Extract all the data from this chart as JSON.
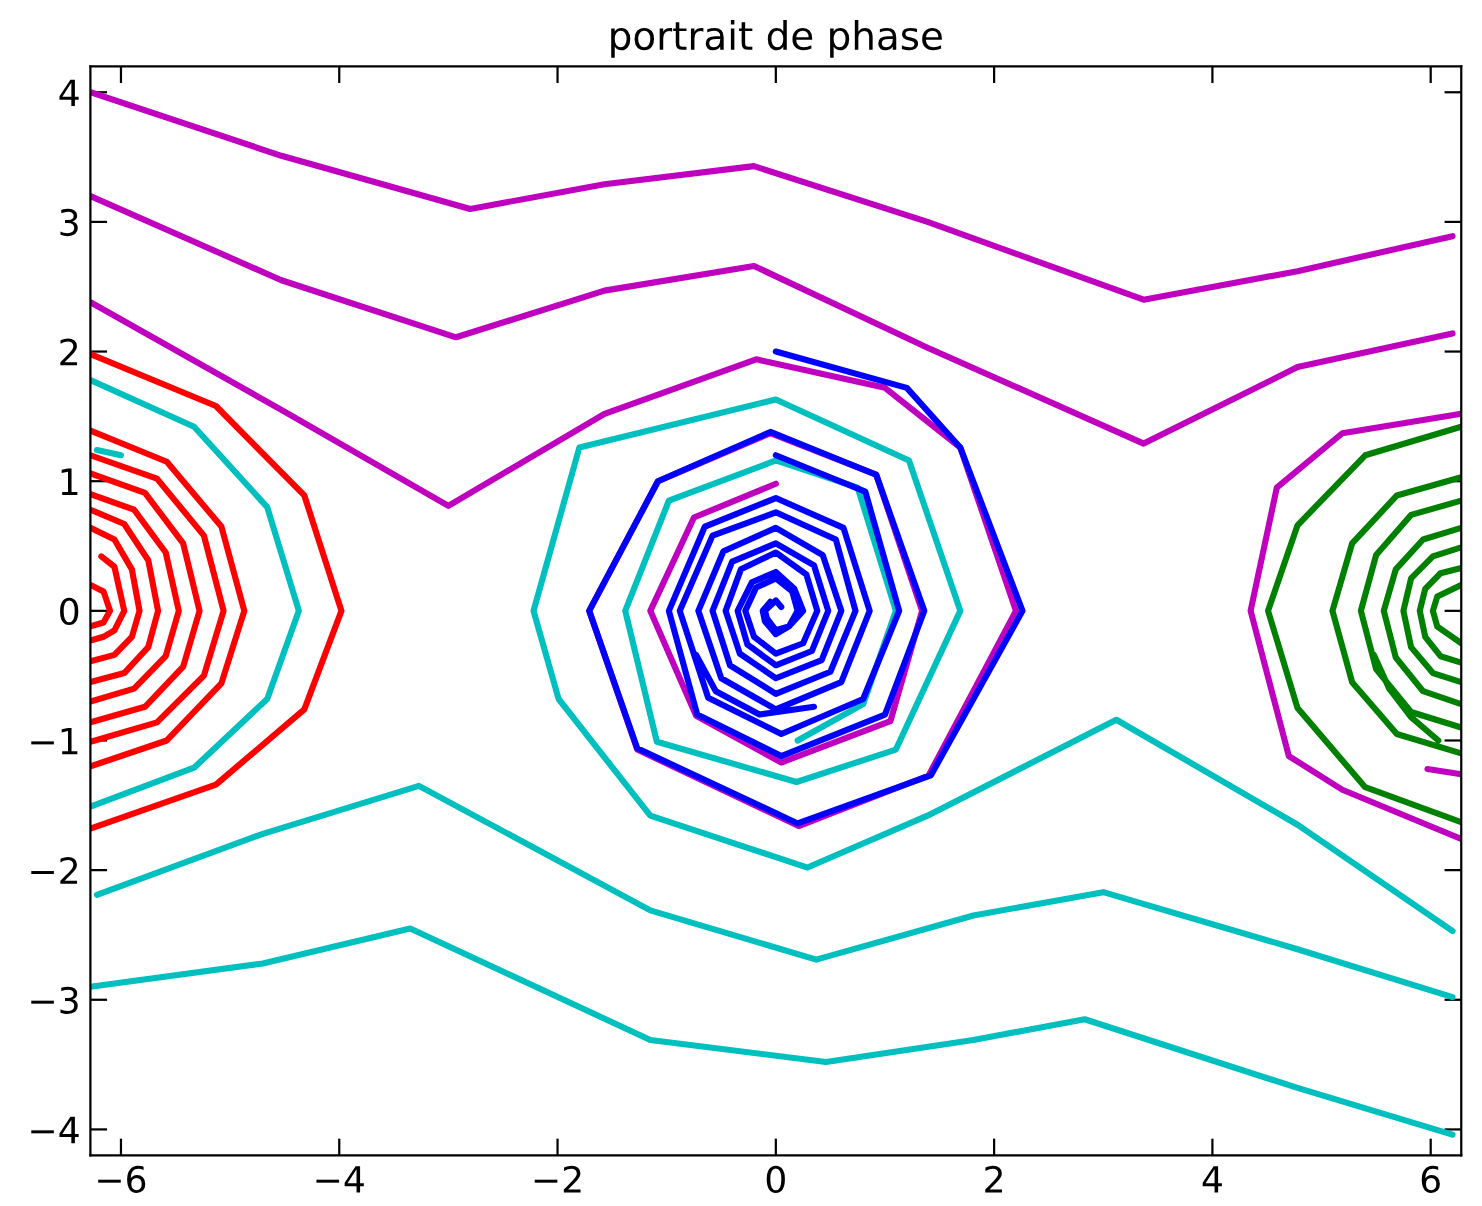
{
  "chart_data": {
    "type": "line",
    "title": "portrait de phase",
    "xlim": [
      -6.28,
      6.28
    ],
    "ylim": [
      -4.2,
      4.2
    ],
    "xticks": [
      -6,
      -4,
      -2,
      0,
      2,
      4,
      6
    ],
    "yticks": [
      -4,
      -3,
      -2,
      -1,
      0,
      1,
      2,
      3,
      4
    ],
    "series": [
      {
        "color": "#ff0000",
        "x": [
          -6.28,
          -5.13,
          -4.32,
          -3.98,
          -4.32,
          -5.13,
          -6.28,
          null,
          -6.28,
          -5.58,
          -5.08,
          -4.87,
          -5.08,
          -5.58,
          -6.28,
          null,
          -6.28,
          -5.67,
          -5.24,
          -5.06,
          -5.24,
          -5.67,
          -6.28,
          null,
          -6.28,
          -5.78,
          -5.43,
          -5.28,
          -5.43,
          -5.78,
          -6.28,
          null,
          -6.28,
          -5.88,
          -5.59,
          -5.47,
          -5.59,
          -5.88,
          -6.28,
          null,
          -6.28,
          -5.97,
          -5.75,
          -5.66,
          -5.75,
          -5.97,
          -6.28,
          null,
          -6.28,
          -6.06,
          -5.9,
          -5.83,
          -5.9,
          -6.06,
          -6.28,
          null,
          -6.18,
          -6.06,
          -5.97,
          -6.06,
          -6.16,
          -6.28,
          null,
          -6.28,
          -6.16,
          -6.1,
          -6.16,
          -6.28
        ],
        "values": [
          1.98,
          1.58,
          0.89,
          0,
          -0.76,
          -1.34,
          -1.68,
          null,
          1.39,
          1.15,
          0.65,
          0,
          -0.56,
          -1.0,
          -1.2,
          null,
          1.2,
          1.02,
          0.58,
          0,
          -0.5,
          -0.86,
          -1.01,
          null,
          1.06,
          0.91,
          0.52,
          0,
          -0.43,
          -0.74,
          -0.86,
          null,
          0.9,
          0.78,
          0.45,
          0,
          -0.35,
          -0.6,
          -0.7,
          null,
          0.78,
          0.67,
          0.39,
          0,
          -0.28,
          -0.48,
          -0.55,
          null,
          0.64,
          0.55,
          0.32,
          0,
          -0.2,
          -0.34,
          -0.39,
          null,
          0.42,
          0.34,
          0,
          -0.15,
          -0.2,
          -0.23,
          null,
          0.2,
          0.15,
          0,
          -0.09,
          -0.12
        ]
      },
      {
        "color": "#00bfbf",
        "x": [
          -6.28,
          -5.33,
          -4.66,
          -4.37,
          -4.66,
          -5.33,
          -6.28,
          null,
          -6.22,
          -6.0,
          null,
          6.2,
          4.78,
          3.0,
          1.81,
          0.37,
          -1.15,
          -3.27,
          -4.7,
          -6.22,
          null,
          6.2,
          4.78,
          2.83,
          1.81,
          0.46,
          -1.15,
          -3.35,
          -4.7,
          -6.28,
          null,
          6.2,
          4.78,
          3.12,
          1.39,
          0.29,
          -1.15,
          -1.99,
          -2.22,
          -1.8,
          0.0,
          1.22,
          1.69,
          1.1,
          0.19,
          -1.09,
          -1.38,
          -0.98,
          0.0,
          0.75,
          1.1,
          0.8,
          0.2
        ],
        "values": [
          1.78,
          1.42,
          0.8,
          0,
          -0.68,
          -1.21,
          -1.51,
          null,
          1.24,
          1.2,
          null,
          -2.98,
          -2.61,
          -2.17,
          -2.35,
          -2.69,
          -2.31,
          -1.35,
          -1.72,
          -2.19,
          null,
          -4.04,
          -3.68,
          -3.15,
          -3.31,
          -3.48,
          -3.31,
          -2.45,
          -2.72,
          -2.9,
          null,
          -2.47,
          -1.65,
          -0.84,
          -1.58,
          -1.98,
          -1.58,
          -0.68,
          0,
          1.26,
          1.63,
          1.16,
          0,
          -1.07,
          -1.32,
          -1.01,
          0,
          0.85,
          1.16,
          0.95,
          0,
          -0.72,
          -1.0
        ]
      },
      {
        "color": "#bf00bf",
        "x": [
          -6.28,
          -4.53,
          -2.8,
          -1.57,
          -0.2,
          1.39,
          3.37,
          4.78,
          6.2,
          null,
          -6.28,
          -4.53,
          -2.93,
          -1.57,
          -0.2,
          1.39,
          3.37,
          4.78,
          6.2,
          null,
          -6.28,
          -4.53,
          -3.0,
          -1.57,
          -0.18,
          1.0,
          1.69,
          2.2,
          1.4,
          0.21,
          -1.27,
          -1.71,
          -1.08,
          -0.05,
          0.92,
          1.34,
          1.05,
          0.05,
          -0.73,
          -1.15,
          -0.75,
          0.0,
          null,
          6.28,
          5.19,
          4.7,
          4.35,
          4.59,
          5.19,
          6.28,
          null,
          5.97,
          6.28
        ],
        "values": [
          4.0,
          3.51,
          3.1,
          3.29,
          3.43,
          3.0,
          2.4,
          2.62,
          2.89,
          null,
          3.2,
          2.55,
          2.11,
          2.47,
          2.66,
          2.03,
          1.29,
          1.88,
          2.14,
          null,
          2.38,
          1.55,
          0.81,
          1.52,
          1.94,
          1.72,
          1.26,
          0,
          -1.27,
          -1.66,
          -1.07,
          0,
          1.0,
          1.37,
          1.05,
          0,
          -0.85,
          -1.17,
          -0.81,
          0,
          0.72,
          0.98,
          null,
          -1.76,
          -1.38,
          -1.12,
          0,
          0.95,
          1.37,
          1.52,
          null,
          -1.22,
          -1.26
        ]
      },
      {
        "color": "#0000ff",
        "x": [
          0,
          1.2,
          1.69,
          2.26,
          1.42,
          0.2,
          -1.27,
          -1.71,
          -1.08,
          -0.05,
          0.92,
          1.36,
          1.0,
          0.05,
          -0.72,
          -0.98,
          -0.65,
          0,
          0.62,
          0.86,
          0.6,
          0,
          -0.5,
          -0.71,
          -0.48,
          0,
          0.43,
          0.6,
          0.42,
          0,
          -0.33,
          -0.46,
          -0.32,
          0,
          0.28,
          0.38,
          0.25,
          0,
          -0.2,
          -0.28,
          -0.18,
          0,
          0.15,
          0.2,
          0.12,
          0,
          -0.08,
          -0.1,
          0,
          0.05,
          null,
          0,
          0.82,
          1.13,
          0.8,
          0.05,
          -0.62,
          -0.88,
          -0.58,
          0,
          0.55,
          0.73,
          0.5,
          0,
          -0.42,
          -0.58,
          -0.4,
          0,
          0.35,
          0.48,
          0.33,
          0,
          -0.26,
          -0.35,
          -0.22,
          0,
          0.17,
          0.25,
          0.12,
          0,
          -0.1,
          -0.12,
          -0.05,
          null,
          -0.73,
          -0.55,
          -0.15,
          0.35
        ],
        "values": [
          2.0,
          1.72,
          1.26,
          0,
          -1.27,
          -1.64,
          -1.06,
          0,
          1.0,
          1.38,
          1.05,
          0,
          -0.8,
          -1.12,
          -0.8,
          0,
          0.65,
          0.87,
          0.64,
          0,
          -0.55,
          -0.76,
          -0.52,
          0,
          0.46,
          0.64,
          0.43,
          0,
          -0.38,
          -0.52,
          -0.33,
          0,
          0.32,
          0.45,
          0.28,
          0,
          -0.25,
          -0.33,
          -0.2,
          0,
          0.18,
          0.25,
          0.15,
          0,
          -0.12,
          -0.15,
          -0.06,
          0,
          0.08,
          0.03,
          null,
          1.2,
          0.92,
          0,
          -0.68,
          -0.95,
          -0.67,
          0,
          0.58,
          0.76,
          0.55,
          0,
          -0.47,
          -0.64,
          -0.42,
          0,
          0.38,
          0.52,
          0.35,
          0,
          -0.31,
          -0.42,
          -0.26,
          0,
          0.22,
          0.3,
          0.17,
          0,
          -0.12,
          -0.18,
          -0.08,
          0,
          0.07,
          null,
          -0.34,
          -0.62,
          -0.8,
          -0.74
        ]
      },
      {
        "color": "#008000",
        "x": [
          6.28,
          5.4,
          4.78,
          4.51,
          4.78,
          5.4,
          6.28,
          null,
          6.28,
          5.69,
          5.28,
          5.1,
          5.28,
          5.69,
          6.28,
          null,
          6.28,
          5.82,
          5.5,
          5.36,
          5.5,
          5.82,
          6.28,
          null,
          6.28,
          5.93,
          5.68,
          5.57,
          5.68,
          5.93,
          6.28,
          null,
          6.28,
          6.02,
          5.82,
          5.75,
          5.82,
          6.02,
          6.28,
          null,
          6.28,
          6.09,
          5.95,
          5.9,
          5.95,
          6.09,
          6.28,
          null,
          6.28,
          6.06,
          6.02,
          6.06,
          6.28,
          null,
          5.48,
          5.62,
          5.82,
          6.07
        ],
        "values": [
          -1.63,
          -1.36,
          -0.75,
          0,
          0.66,
          1.2,
          1.42,
          null,
          -1.1,
          -0.95,
          -0.55,
          0,
          0.52,
          0.89,
          1.03,
          null,
          -0.9,
          -0.78,
          -0.45,
          0,
          0.43,
          0.74,
          0.85,
          null,
          -0.72,
          -0.62,
          -0.36,
          0,
          0.32,
          0.55,
          0.64,
          null,
          -0.55,
          -0.48,
          -0.28,
          0,
          0.25,
          0.42,
          0.49,
          null,
          -0.4,
          -0.35,
          -0.2,
          0,
          0.17,
          0.29,
          0.33,
          null,
          -0.25,
          -0.12,
          0,
          0.11,
          0.2,
          null,
          -0.34,
          -0.6,
          -0.82,
          -1.0
        ]
      }
    ]
  }
}
